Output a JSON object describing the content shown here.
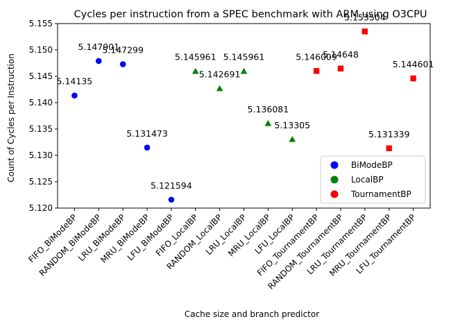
{
  "chart_data": {
    "type": "scatter",
    "title": "Cycles per instruction from a SPEC benchmark with ARM using O3CPU",
    "xlabel": "Cache size and branch predictor",
    "ylabel": "Count of Cycles per Instruction",
    "ylim": [
      5.12,
      5.155
    ],
    "yticks": [
      "5.120",
      "5.125",
      "5.130",
      "5.135",
      "5.140",
      "5.145",
      "5.150",
      "5.155"
    ],
    "categories": [
      "FIFO_BiModeBP",
      "RANDOM_BiModeBP",
      "LRU_BiModeBP",
      "MRU_BiModeBP",
      "LFU_BiModeBP",
      "FIFO_LocalBP",
      "RANDOM_LocalBP",
      "LRU_LocalBP",
      "MRU_LocalBP",
      "LFU_LocalBP",
      "FIFO_TournamentBP",
      "RANDOM_TournamentBP",
      "LRU_TournamentBP",
      "MRU_TournamentBP",
      "LFU_TournamentBP"
    ],
    "legend_position": "lower-right",
    "series": [
      {
        "name": "BiModeBP",
        "color": "#0000ff",
        "marker": "circle",
        "x": [
          0,
          1,
          2,
          3,
          4
        ],
        "values": [
          5.14135,
          5.147901,
          5.147299,
          5.131473,
          5.121594
        ],
        "labels": [
          "5.14135",
          "5.147901",
          "5.147299",
          "5.131473",
          "5.121594"
        ]
      },
      {
        "name": "LocalBP",
        "color": "#008000",
        "marker": "triangle",
        "x": [
          5,
          6,
          7,
          8,
          9
        ],
        "values": [
          5.145961,
          5.142691,
          5.145961,
          5.136081,
          5.13305
        ],
        "labels": [
          "5.145961",
          "5.142691",
          "5.145961",
          "5.136081",
          "5.13305"
        ]
      },
      {
        "name": "TournamentBP",
        "color": "#ff0000",
        "marker": "square",
        "x": [
          10,
          11,
          12,
          13,
          14
        ],
        "values": [
          5.146009,
          5.14648,
          5.153504,
          5.131339,
          5.144601
        ],
        "labels": [
          "5.146009",
          "5.14648",
          "5.153504",
          "5.131339",
          "5.144601"
        ]
      }
    ]
  }
}
